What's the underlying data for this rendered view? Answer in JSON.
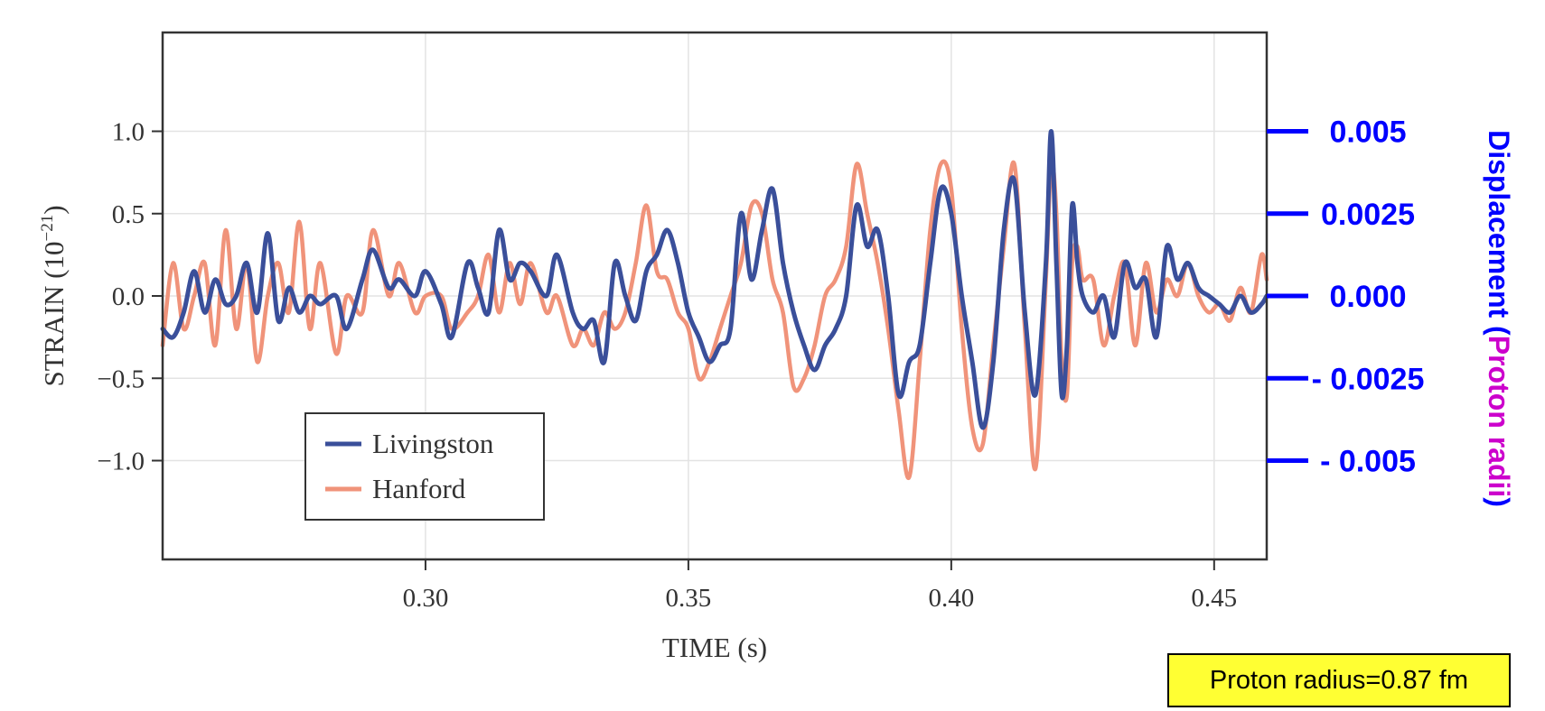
{
  "chart_data": {
    "type": "line",
    "xlabel": "TIME (s)",
    "ylabel": "STRAIN (10",
    "ylabel_exponent": "−21",
    "ylabel_close": ")",
    "xlim": [
      0.25,
      0.46
    ],
    "ylim": [
      -1.6,
      1.6
    ],
    "grid": true,
    "legend_position": "lower-left",
    "x_ticks": [
      0.3,
      0.35,
      0.4,
      0.45
    ],
    "x_tick_labels": [
      "0.30",
      "0.35",
      "0.40",
      "0.45"
    ],
    "y_ticks": [
      1.0,
      0.5,
      0.0,
      -0.5,
      -1.0
    ],
    "y_tick_labels": [
      "1.0",
      "0.5",
      "0.0",
      "−0.5",
      "−1.0"
    ],
    "right_axis": {
      "title_part1": "Displacement (",
      "title_part2": "Proton radii",
      "title_part3": ")",
      "ticks": [
        1.0,
        0.5,
        0.0,
        -0.5,
        -1.0
      ],
      "tick_labels": [
        "0.005",
        "0.0025",
        "0.000",
        "- 0.0025",
        "- 0.005"
      ],
      "color": "#0000ff",
      "accent_color": "#cc00cc"
    },
    "series": [
      {
        "name": "Livingston",
        "color": "#3a4f9a",
        "x": [
          0.25,
          0.252,
          0.254,
          0.256,
          0.258,
          0.26,
          0.262,
          0.264,
          0.266,
          0.268,
          0.27,
          0.272,
          0.274,
          0.276,
          0.278,
          0.28,
          0.283,
          0.285,
          0.288,
          0.29,
          0.293,
          0.295,
          0.298,
          0.3,
          0.303,
          0.305,
          0.308,
          0.31,
          0.312,
          0.314,
          0.316,
          0.318,
          0.32,
          0.323,
          0.325,
          0.328,
          0.33,
          0.332,
          0.334,
          0.336,
          0.338,
          0.34,
          0.342,
          0.344,
          0.346,
          0.348,
          0.35,
          0.352,
          0.354,
          0.356,
          0.358,
          0.36,
          0.362,
          0.364,
          0.366,
          0.368,
          0.37,
          0.372,
          0.374,
          0.376,
          0.378,
          0.38,
          0.382,
          0.384,
          0.386,
          0.388,
          0.39,
          0.392,
          0.394,
          0.396,
          0.398,
          0.4,
          0.402,
          0.404,
          0.406,
          0.408,
          0.41,
          0.412,
          0.414,
          0.416,
          0.418,
          0.419,
          0.42,
          0.421,
          0.422,
          0.423,
          0.424,
          0.425,
          0.427,
          0.429,
          0.431,
          0.433,
          0.435,
          0.437,
          0.439,
          0.441,
          0.443,
          0.445,
          0.447,
          0.449,
          0.451,
          0.453,
          0.455,
          0.457,
          0.459,
          0.46
        ],
        "y": [
          -0.2,
          -0.25,
          -0.1,
          0.15,
          -0.1,
          0.1,
          -0.05,
          0.0,
          0.2,
          -0.1,
          0.38,
          -0.15,
          0.05,
          -0.1,
          0.0,
          -0.05,
          0.0,
          -0.2,
          0.1,
          0.28,
          0.05,
          0.1,
          0.0,
          0.15,
          -0.05,
          -0.25,
          0.2,
          0.05,
          -0.1,
          0.4,
          0.1,
          0.2,
          0.15,
          0.0,
          0.25,
          -0.1,
          -0.2,
          -0.15,
          -0.4,
          0.2,
          0.0,
          -0.15,
          0.15,
          0.25,
          0.4,
          0.2,
          -0.1,
          -0.25,
          -0.4,
          -0.3,
          -0.2,
          0.5,
          0.1,
          0.4,
          0.65,
          0.2,
          -0.1,
          -0.3,
          -0.45,
          -0.3,
          -0.2,
          0.0,
          0.55,
          0.3,
          0.4,
          0.0,
          -0.6,
          -0.4,
          -0.3,
          0.2,
          0.65,
          0.5,
          0.0,
          -0.4,
          -0.8,
          -0.4,
          0.4,
          0.7,
          -0.1,
          -0.6,
          0.2,
          1.0,
          0.2,
          -0.6,
          -0.3,
          0.55,
          0.2,
          0.0,
          -0.1,
          0.0,
          -0.25,
          0.2,
          0.05,
          0.1,
          -0.25,
          0.3,
          0.1,
          0.2,
          0.05,
          0.0,
          -0.05,
          -0.1,
          0.0,
          -0.1,
          -0.05,
          0.0
        ]
      },
      {
        "name": "Hanford",
        "color": "#f0937a",
        "x": [
          0.25,
          0.252,
          0.254,
          0.256,
          0.258,
          0.26,
          0.262,
          0.264,
          0.266,
          0.268,
          0.27,
          0.272,
          0.274,
          0.276,
          0.278,
          0.28,
          0.283,
          0.285,
          0.288,
          0.29,
          0.293,
          0.295,
          0.298,
          0.3,
          0.303,
          0.305,
          0.308,
          0.31,
          0.312,
          0.314,
          0.316,
          0.318,
          0.32,
          0.323,
          0.325,
          0.328,
          0.33,
          0.332,
          0.334,
          0.336,
          0.338,
          0.34,
          0.342,
          0.344,
          0.346,
          0.348,
          0.35,
          0.352,
          0.354,
          0.356,
          0.358,
          0.36,
          0.362,
          0.364,
          0.366,
          0.368,
          0.37,
          0.372,
          0.374,
          0.376,
          0.378,
          0.38,
          0.382,
          0.384,
          0.386,
          0.388,
          0.39,
          0.392,
          0.394,
          0.396,
          0.398,
          0.4,
          0.402,
          0.404,
          0.406,
          0.408,
          0.41,
          0.412,
          0.414,
          0.416,
          0.418,
          0.419,
          0.42,
          0.421,
          0.422,
          0.423,
          0.424,
          0.425,
          0.427,
          0.429,
          0.431,
          0.433,
          0.435,
          0.437,
          0.439,
          0.441,
          0.443,
          0.445,
          0.447,
          0.449,
          0.451,
          0.453,
          0.455,
          0.457,
          0.459,
          0.46
        ],
        "y": [
          -0.3,
          0.2,
          -0.2,
          0.0,
          0.2,
          -0.3,
          0.4,
          -0.2,
          0.2,
          -0.4,
          0.0,
          0.2,
          -0.1,
          0.45,
          -0.2,
          0.2,
          -0.35,
          0.0,
          -0.1,
          0.4,
          0.0,
          0.2,
          -0.1,
          0.0,
          0.0,
          -0.2,
          -0.1,
          0.0,
          0.25,
          -0.1,
          0.2,
          -0.05,
          0.2,
          -0.1,
          0.0,
          -0.3,
          -0.2,
          -0.3,
          -0.1,
          -0.2,
          -0.1,
          0.2,
          0.55,
          0.15,
          0.1,
          -0.1,
          -0.2,
          -0.5,
          -0.4,
          -0.2,
          0.0,
          0.2,
          0.55,
          0.5,
          0.1,
          -0.1,
          -0.55,
          -0.5,
          -0.3,
          0.0,
          0.1,
          0.3,
          0.8,
          0.5,
          0.2,
          -0.2,
          -0.7,
          -1.1,
          -0.4,
          0.4,
          0.8,
          0.65,
          -0.2,
          -0.8,
          -0.9,
          -0.3,
          0.3,
          0.8,
          -0.2,
          -1.05,
          0.1,
          0.8,
          0.5,
          -0.4,
          -0.6,
          0.2,
          0.3,
          0.1,
          0.1,
          -0.3,
          0.0,
          0.2,
          -0.3,
          0.2,
          -0.1,
          0.1,
          0.0,
          0.2,
          0.0,
          -0.1,
          -0.05,
          -0.15,
          0.05,
          -0.1,
          0.25,
          0.1
        ]
      }
    ]
  },
  "note": {
    "text": "Proton radius=0.87 fm",
    "background": "#ffff33"
  }
}
